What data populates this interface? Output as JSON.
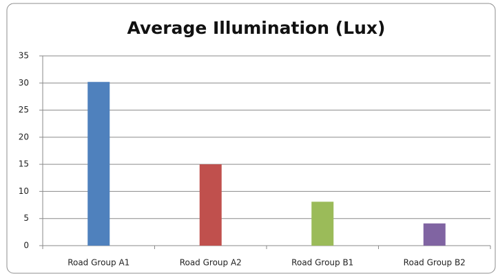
{
  "chart_data": {
    "type": "bar",
    "title": "Average Illumination (Lux)",
    "categories": [
      "Road Group A1",
      "Road Group A2",
      "Road Group B1",
      "Road Group B2"
    ],
    "values": [
      30.2,
      15,
      8.1,
      4.1
    ],
    "colors": [
      "#4f81bd",
      "#c0504d",
      "#9bbb59",
      "#8064a2"
    ],
    "ylim": [
      0,
      35
    ],
    "yticks": [
      0,
      5,
      10,
      15,
      20,
      25,
      30,
      35
    ],
    "grid": true
  }
}
